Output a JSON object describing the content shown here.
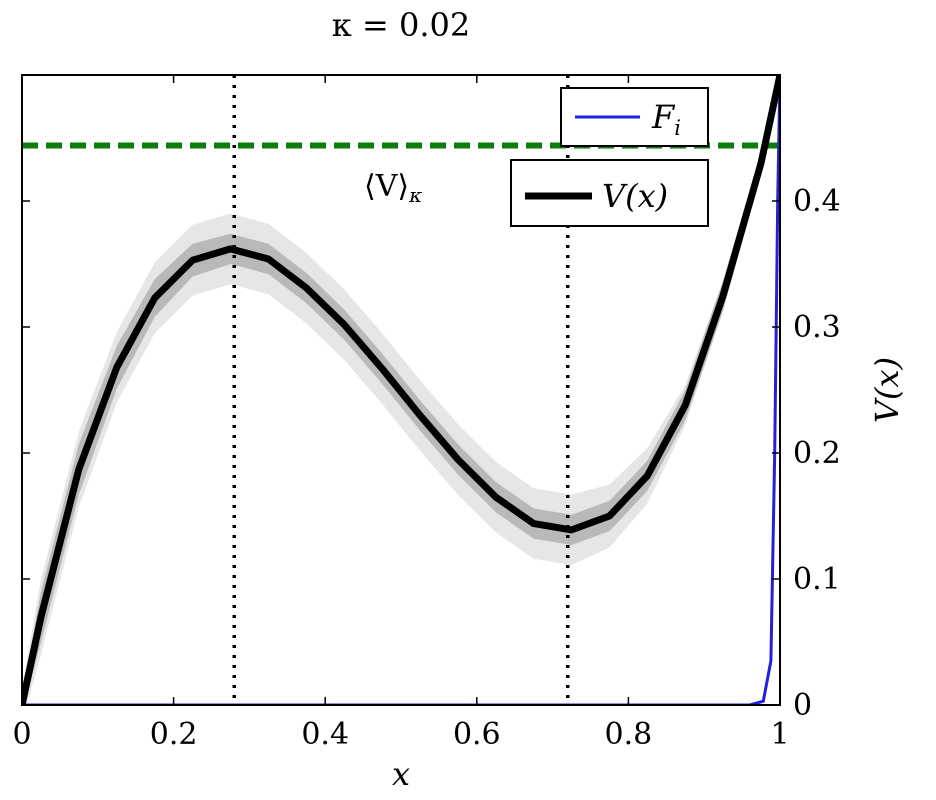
{
  "chart_data": {
    "type": "line",
    "title": "κ = 0.02",
    "xlabel": "x",
    "ylabel": "V(x)",
    "xlim": [
      0,
      1
    ],
    "ylim": [
      0,
      0.5
    ],
    "x_ticks": [
      "0",
      "0.2",
      "0.4",
      "0.6",
      "0.8",
      "1"
    ],
    "x_tick_values": [
      0,
      0.2,
      0.4,
      0.6,
      0.8,
      1
    ],
    "y_ticks": [
      "0",
      "0.1",
      "0.2",
      "0.3",
      "0.4"
    ],
    "y_tick_values": [
      0,
      0.1,
      0.2,
      0.3,
      0.4
    ],
    "y_axis_side": "right",
    "grid": false,
    "legend_position": "top-right",
    "series": [
      {
        "name": "V(x)",
        "color": "#000000",
        "x": [
          0,
          0.025,
          0.075,
          0.125,
          0.175,
          0.225,
          0.275,
          0.325,
          0.375,
          0.425,
          0.475,
          0.525,
          0.575,
          0.625,
          0.675,
          0.725,
          0.775,
          0.825,
          0.875,
          0.925,
          0.975,
          1.0
        ],
        "y": [
          0,
          0.07,
          0.187,
          0.268,
          0.323,
          0.353,
          0.362,
          0.354,
          0.331,
          0.302,
          0.267,
          0.23,
          0.195,
          0.165,
          0.144,
          0.139,
          0.15,
          0.182,
          0.238,
          0.325,
          0.43,
          0.5
        ],
        "band_inner": [
          0.007,
          0.02,
          0.02,
          0.017,
          0.015,
          0.013,
          0.012,
          0.012,
          0.012,
          0.012,
          0.012,
          0.012,
          0.012,
          0.012,
          0.012,
          0.012,
          0.012,
          0.012,
          0.012,
          0.012,
          0.008,
          0.006
        ],
        "band_outer": [
          0.014,
          0.03,
          0.03,
          0.028,
          0.028,
          0.028,
          0.028,
          0.028,
          0.028,
          0.028,
          0.028,
          0.028,
          0.028,
          0.028,
          0.028,
          0.028,
          0.025,
          0.022,
          0.016,
          0.012,
          0.009,
          0.008
        ]
      },
      {
        "name": "F_i",
        "color": "#2020dd",
        "x": [
          0,
          0.96,
          0.978,
          0.988,
          0.993,
          0.997,
          1.0
        ],
        "y": [
          0,
          0,
          0.003,
          0.035,
          0.2,
          0.4,
          0.5
        ]
      }
    ],
    "reference_lines": [
      {
        "orientation": "horizontal",
        "y": 0.444,
        "style": "dashed",
        "color": "#0a7d0a",
        "label": "⟨V⟩",
        "label_sub": "κ"
      },
      {
        "orientation": "vertical",
        "x": 0.28,
        "style": "dotted",
        "color": "#000000"
      },
      {
        "orientation": "vertical",
        "x": 0.72,
        "style": "dotted",
        "color": "#000000"
      }
    ],
    "legends": [
      {
        "label": "F",
        "label_sub": "i",
        "color": "#2020dd"
      },
      {
        "label": "V(x)",
        "color": "#000000"
      }
    ]
  }
}
